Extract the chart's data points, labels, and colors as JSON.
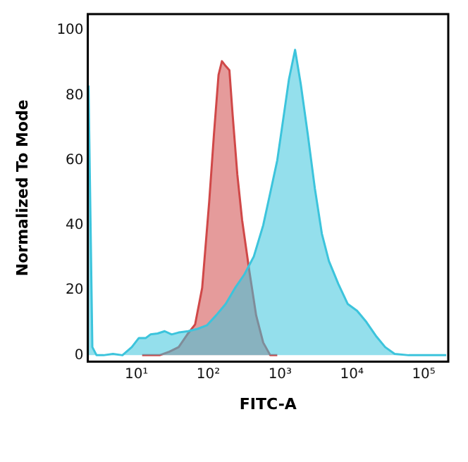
{
  "chart_data": {
    "type": "area",
    "xlabel": "FITC-A",
    "ylabel": "Normalized To Mode",
    "log": "x",
    "xlim": [
      2.1,
      220000
    ],
    "ylim": [
      -2,
      105
    ],
    "xticks": [
      {
        "value": 10,
        "label": "10¹"
      },
      {
        "value": 100,
        "label": "10²"
      },
      {
        "value": 1000,
        "label": "10³"
      },
      {
        "value": 10000,
        "label": "10⁴"
      },
      {
        "value": 100000,
        "label": "10⁵"
      }
    ],
    "yticks": [
      0,
      20,
      40,
      60,
      80,
      100
    ],
    "grid": false,
    "legend": false,
    "series": [
      {
        "color": "#3cc4dc",
        "x": [
          2.15,
          2.43,
          2.78,
          3.48,
          4.71,
          6.37,
          8.6,
          10.8,
          13.5,
          15.7,
          19.7,
          24.7,
          30.9,
          38.7,
          52.3,
          70.8,
          95.6,
          129,
          175,
          236,
          319,
          431,
          582,
          730,
          914,
          1146,
          1331,
          1618,
          1941,
          2432,
          3048,
          3819,
          4786,
          6457,
          8730,
          11800,
          15950,
          21540,
          29100,
          39400,
          61800,
          97000,
          206000
        ],
        "values": [
          83,
          2.5,
          0,
          0,
          0.4,
          0,
          2.5,
          5.3,
          5.3,
          6.4,
          6.7,
          7.4,
          6.4,
          7,
          7.4,
          8.1,
          9.2,
          12.3,
          15.8,
          20.7,
          24.9,
          30.4,
          40,
          50,
          60,
          75,
          85,
          94,
          83.5,
          68,
          51.4,
          37.4,
          29,
          22,
          15.8,
          13.7,
          10.2,
          6,
          2.5,
          0.4,
          0,
          0,
          0
        ]
      },
      {
        "color": "#d04848",
        "x": [
          12,
          21,
          28.7,
          38.7,
          52.3,
          65.6,
          82.2,
          103,
          120,
          139,
          155,
          175,
          197,
          219,
          254,
          296,
          371,
          464,
          582,
          730,
          914
        ],
        "values": [
          0,
          0,
          1.1,
          2.5,
          6.7,
          9.5,
          20.7,
          47.2,
          68,
          86.3,
          90.5,
          89,
          87.7,
          73.7,
          55.6,
          41.6,
          26.3,
          12.3,
          3.9,
          0,
          0
        ]
      }
    ]
  }
}
